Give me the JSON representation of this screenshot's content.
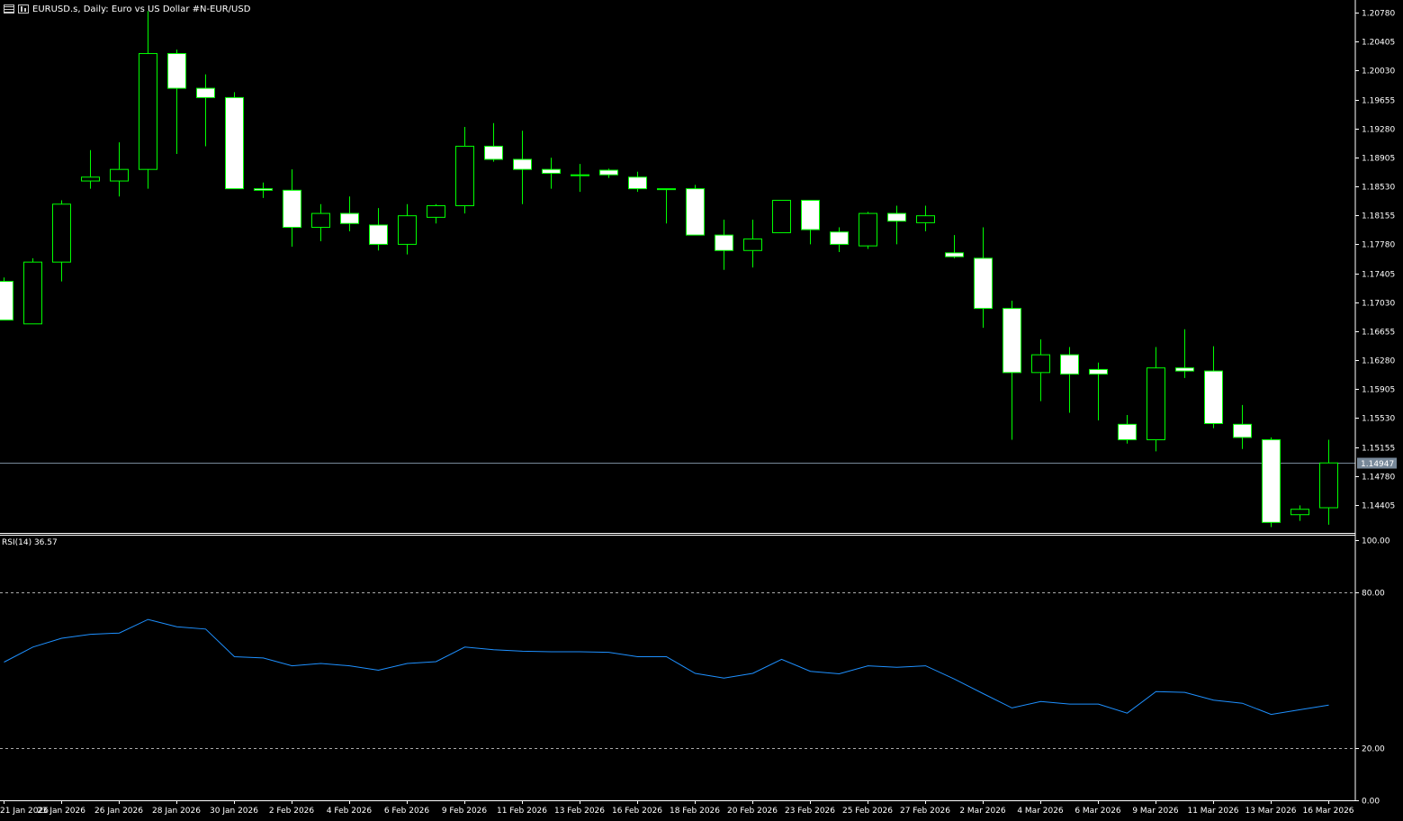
{
  "header": {
    "symbol_title": "EURUSD.s, Daily:  Euro vs US Dollar #N-EUR/USD"
  },
  "rsi": {
    "label": "RSI(14) 36.57"
  },
  "colors": {
    "background": "#000000",
    "candle_outline": "#00ff00",
    "candle_body_bull": "#000000",
    "candle_body_bear": "#ffffff",
    "rsi_line": "#1e90ff",
    "grid_text": "#ffffff",
    "bid_line": "#778899"
  },
  "chart_data": [
    {
      "type": "candlestick",
      "title": "EURUSD.s, Daily:  Euro vs US Dollar #N-EUR/USD",
      "ylim": [
        1.141,
        1.21
      ],
      "y_ticks": [
        "1.20780",
        "1.20405",
        "1.20030",
        "1.19655",
        "1.19280",
        "1.18905",
        "1.18530",
        "1.18155",
        "1.17780",
        "1.17405",
        "1.17030",
        "1.16655",
        "1.16280",
        "1.15905",
        "1.15530",
        "1.15155",
        "1.14780",
        "1.14405"
      ],
      "current_price": "1.14947",
      "x_tick_labels": [
        "21 Jan 2026",
        "23 Jan 2026",
        "26 Jan 2026",
        "28 Jan 2026",
        "30 Jan 2026",
        "2 Feb 2026",
        "4 Feb 2026",
        "6 Feb 2026",
        "9 Feb 2026",
        "11 Feb 2026",
        "13 Feb 2026",
        "16 Feb 2026",
        "18 Feb 2026",
        "20 Feb 2026",
        "23 Feb 2026",
        "25 Feb 2026",
        "27 Feb 2026",
        "2 Mar 2026",
        "4 Mar 2026",
        "6 Mar 2026",
        "9 Mar 2026",
        "11 Mar 2026",
        "13 Mar 2026",
        "16 Mar 2026"
      ],
      "candles": [
        {
          "o": 1.173,
          "h": 1.1735,
          "l": 1.168,
          "c": 1.168
        },
        {
          "o": 1.1675,
          "h": 1.176,
          "l": 1.1675,
          "c": 1.1755
        },
        {
          "o": 1.1755,
          "h": 1.1835,
          "l": 1.173,
          "c": 1.183
        },
        {
          "o": 1.186,
          "h": 1.19,
          "l": 1.185,
          "c": 1.1865
        },
        {
          "o": 1.186,
          "h": 1.191,
          "l": 1.184,
          "c": 1.1875
        },
        {
          "o": 1.1875,
          "h": 1.208,
          "l": 1.185,
          "c": 1.2025
        },
        {
          "o": 1.2025,
          "h": 1.203,
          "l": 1.1895,
          "c": 1.198
        },
        {
          "o": 1.198,
          "h": 1.1998,
          "l": 1.1905,
          "c": 1.1968
        },
        {
          "o": 1.1968,
          "h": 1.1975,
          "l": 1.185,
          "c": 1.185
        },
        {
          "o": 1.185,
          "h": 1.1858,
          "l": 1.1838,
          "c": 1.1848
        },
        {
          "o": 1.1848,
          "h": 1.1875,
          "l": 1.1775,
          "c": 1.18
        },
        {
          "o": 1.18,
          "h": 1.183,
          "l": 1.1782,
          "c": 1.1818
        },
        {
          "o": 1.1818,
          "h": 1.184,
          "l": 1.1795,
          "c": 1.1805
        },
        {
          "o": 1.1803,
          "h": 1.1825,
          "l": 1.177,
          "c": 1.1778
        },
        {
          "o": 1.1778,
          "h": 1.183,
          "l": 1.1765,
          "c": 1.1815
        },
        {
          "o": 1.1813,
          "h": 1.183,
          "l": 1.1805,
          "c": 1.1828
        },
        {
          "o": 1.1828,
          "h": 1.193,
          "l": 1.1818,
          "c": 1.1905
        },
        {
          "o": 1.1905,
          "h": 1.1935,
          "l": 1.1885,
          "c": 1.1888
        },
        {
          "o": 1.1888,
          "h": 1.1925,
          "l": 1.183,
          "c": 1.1875
        },
        {
          "o": 1.1875,
          "h": 1.189,
          "l": 1.185,
          "c": 1.187
        },
        {
          "o": 1.1868,
          "h": 1.1882,
          "l": 1.1846,
          "c": 1.1868
        },
        {
          "o": 1.1874,
          "h": 1.1876,
          "l": 1.1864,
          "c": 1.1868
        },
        {
          "o": 1.1865,
          "h": 1.1872,
          "l": 1.1846,
          "c": 1.185
        },
        {
          "o": 1.185,
          "h": 1.185,
          "l": 1.1805,
          "c": 1.185
        },
        {
          "o": 1.185,
          "h": 1.1855,
          "l": 1.179,
          "c": 1.179
        },
        {
          "o": 1.179,
          "h": 1.181,
          "l": 1.1745,
          "c": 1.177
        },
        {
          "o": 1.177,
          "h": 1.181,
          "l": 1.1748,
          "c": 1.1785
        },
        {
          "o": 1.1793,
          "h": 1.1835,
          "l": 1.1793,
          "c": 1.1835
        },
        {
          "o": 1.1835,
          "h": 1.1835,
          "l": 1.1778,
          "c": 1.1797
        },
        {
          "o": 1.1794,
          "h": 1.18,
          "l": 1.1768,
          "c": 1.1778
        },
        {
          "o": 1.1776,
          "h": 1.182,
          "l": 1.1772,
          "c": 1.1818
        },
        {
          "o": 1.1818,
          "h": 1.1828,
          "l": 1.1778,
          "c": 1.1808
        },
        {
          "o": 1.1806,
          "h": 1.1828,
          "l": 1.1795,
          "c": 1.1815
        },
        {
          "o": 1.1767,
          "h": 1.179,
          "l": 1.176,
          "c": 1.1762
        },
        {
          "o": 1.176,
          "h": 1.18,
          "l": 1.167,
          "c": 1.1695
        },
        {
          "o": 1.1695,
          "h": 1.1705,
          "l": 1.1525,
          "c": 1.1612
        },
        {
          "o": 1.1612,
          "h": 1.1655,
          "l": 1.1575,
          "c": 1.1635
        },
        {
          "o": 1.1635,
          "h": 1.1645,
          "l": 1.156,
          "c": 1.161
        },
        {
          "o": 1.1616,
          "h": 1.1625,
          "l": 1.155,
          "c": 1.161
        },
        {
          "o": 1.1545,
          "h": 1.1557,
          "l": 1.152,
          "c": 1.1525
        },
        {
          "o": 1.1525,
          "h": 1.1645,
          "l": 1.151,
          "c": 1.1618
        },
        {
          "o": 1.1618,
          "h": 1.1668,
          "l": 1.1605,
          "c": 1.1614
        },
        {
          "o": 1.1614,
          "h": 1.1646,
          "l": 1.154,
          "c": 1.1546
        },
        {
          "o": 1.1545,
          "h": 1.157,
          "l": 1.1513,
          "c": 1.1528
        },
        {
          "o": 1.1525,
          "h": 1.1528,
          "l": 1.1412,
          "c": 1.1418
        },
        {
          "o": 1.1428,
          "h": 1.144,
          "l": 1.142,
          "c": 1.1435
        },
        {
          "o": 1.1437,
          "h": 1.1525,
          "l": 1.1415,
          "c": 1.1495
        }
      ]
    },
    {
      "type": "line",
      "title": "RSI(14) 36.57",
      "ylim": [
        0,
        100
      ],
      "y_ticks": [
        "100.00",
        "80.00",
        "20.00",
        "0.00"
      ],
      "levels": [
        80,
        20
      ],
      "series": [
        {
          "name": "RSI(14)",
          "values": [
            53.1,
            58.9,
            62.3,
            63.8,
            64.3,
            69.5,
            66.7,
            65.8,
            55.2,
            54.7,
            51.7,
            52.6,
            51.7,
            50.0,
            52.6,
            53.3,
            58.9,
            57.9,
            57.3,
            57.1,
            57.1,
            56.9,
            55.2,
            55.2,
            48.8,
            47.0,
            48.8,
            54.2,
            49.6,
            48.6,
            51.7,
            51.1,
            51.7,
            46.6,
            41.0,
            35.5,
            38.0,
            37.0,
            37.0,
            33.5,
            41.8,
            41.5,
            38.5,
            37.3,
            33.0,
            34.8,
            36.57
          ]
        }
      ]
    }
  ]
}
